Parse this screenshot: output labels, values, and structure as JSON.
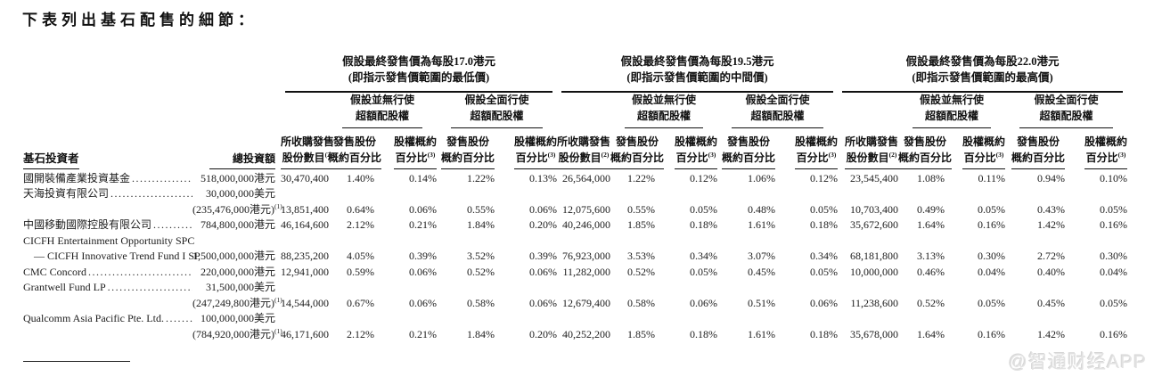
{
  "page": {
    "title": "下表列出基石配售的細節：",
    "watermark": "@智通财经APP"
  },
  "table": {
    "investor_header": "基石投資者",
    "investment_header": "總投資額",
    "price_groups": [
      {
        "title_line1": "假設最終發售價為每股17.0港元",
        "title_line2": "(即指示發售價範圍的最低價)"
      },
      {
        "title_line1": "假設最終發售價為每股19.5港元",
        "title_line2": "(即指示發售價範圍的中間價)"
      },
      {
        "title_line1": "假設最終發售價為每股22.0港元",
        "title_line2": "(即指示發售價範圍的最高價)"
      }
    ],
    "scenario_headers": {
      "no_exercise_line1": "假設並無行使",
      "no_exercise_line2": "超額配股權",
      "full_exercise_line1": "假設全面行使",
      "full_exercise_line2": "超額配股權"
    },
    "column_headers": {
      "shares_line1": "所收購發售",
      "shares_line2": "股份數目",
      "shares_sup": "(2)",
      "offer_pct_line1": "發售股份",
      "offer_pct_line2": "概約百分比",
      "offer_pct_sup": "",
      "holding_pct_line1": "股權概約",
      "holding_pct_line2": "百分比",
      "holding_pct_sup": "(3)"
    },
    "lines": [
      {
        "name": "國開裝備產業投資基金",
        "indent": false,
        "dots": true,
        "investment": "518,000,000港元",
        "investment_sup": "",
        "cells": [
          "30,470,400",
          "1.40%",
          "0.14%",
          "1.22%",
          "0.13%",
          "26,564,000",
          "1.22%",
          "0.12%",
          "1.06%",
          "0.12%",
          "23,545,400",
          "1.08%",
          "0.11%",
          "0.94%",
          "0.10%"
        ]
      },
      {
        "name": "天海投資有限公司",
        "indent": false,
        "dots": true,
        "investment": "30,000,000美元",
        "investment_sup": "",
        "cells": []
      },
      {
        "name": "",
        "indent": false,
        "dots": false,
        "investment": "(235,476,000港元)",
        "investment_sup": "(1)",
        "cells": [
          "13,851,400",
          "0.64%",
          "0.06%",
          "0.55%",
          "0.06%",
          "12,075,600",
          "0.55%",
          "0.05%",
          "0.48%",
          "0.05%",
          "10,703,400",
          "0.49%",
          "0.05%",
          "0.43%",
          "0.05%"
        ]
      },
      {
        "name": "中國移動國際控股有限公司",
        "indent": false,
        "dots": true,
        "investment": "784,800,000港元",
        "investment_sup": "",
        "cells": [
          "46,164,600",
          "2.12%",
          "0.21%",
          "1.84%",
          "0.20%",
          "40,246,000",
          "1.85%",
          "0.18%",
          "1.61%",
          "0.18%",
          "35,672,600",
          "1.64%",
          "0.16%",
          "1.42%",
          "0.16%"
        ]
      },
      {
        "name": "CICFH Entertainment Opportunity SPC",
        "indent": false,
        "dots": false,
        "investment": "",
        "investment_sup": "",
        "cells": []
      },
      {
        "name": "— CICFH Innovative Trend Fund I SP",
        "indent": true,
        "dots": true,
        "investment": "1,500,000,000港元",
        "investment_sup": "",
        "cells": [
          "88,235,200",
          "4.05%",
          "0.39%",
          "3.52%",
          "0.39%",
          "76,923,000",
          "3.53%",
          "0.34%",
          "3.07%",
          "0.34%",
          "68,181,800",
          "3.13%",
          "0.30%",
          "2.72%",
          "0.30%"
        ]
      },
      {
        "name": "CMC Concord",
        "indent": false,
        "dots": true,
        "investment": "220,000,000港元",
        "investment_sup": "",
        "cells": [
          "12,941,000",
          "0.59%",
          "0.06%",
          "0.52%",
          "0.06%",
          "11,282,000",
          "0.52%",
          "0.05%",
          "0.45%",
          "0.05%",
          "10,000,000",
          "0.46%",
          "0.04%",
          "0.40%",
          "0.04%"
        ]
      },
      {
        "name": "Grantwell Fund LP",
        "indent": false,
        "dots": true,
        "investment": "31,500,000美元",
        "investment_sup": "",
        "cells": []
      },
      {
        "name": "",
        "indent": false,
        "dots": false,
        "investment": "(247,249,800港元)",
        "investment_sup": "(1)",
        "cells": [
          "14,544,000",
          "0.67%",
          "0.06%",
          "0.58%",
          "0.06%",
          "12,679,400",
          "0.58%",
          "0.06%",
          "0.51%",
          "0.06%",
          "11,238,600",
          "0.52%",
          "0.05%",
          "0.45%",
          "0.05%"
        ]
      },
      {
        "name": "Qualcomm Asia Pacific Pte. Ltd.",
        "indent": false,
        "dots": true,
        "investment": "100,000,000美元",
        "investment_sup": "",
        "cells": []
      },
      {
        "name": "",
        "indent": false,
        "dots": false,
        "investment": "(784,920,000港元)",
        "investment_sup": "(1)",
        "cells": [
          "46,171,600",
          "2.12%",
          "0.21%",
          "1.84%",
          "0.20%",
          "40,252,200",
          "1.85%",
          "0.18%",
          "1.61%",
          "0.18%",
          "35,678,000",
          "1.64%",
          "0.16%",
          "1.42%",
          "0.16%"
        ]
      }
    ]
  }
}
